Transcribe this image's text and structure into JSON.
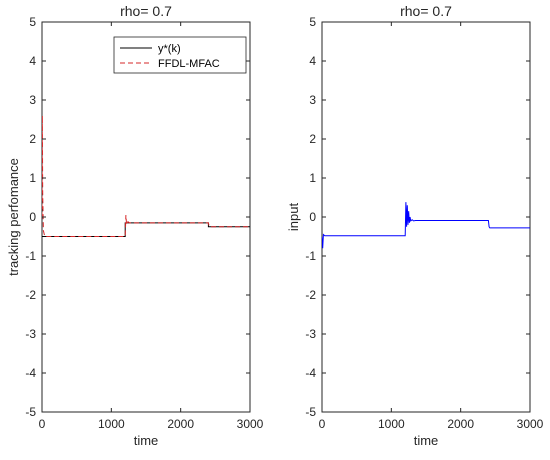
{
  "chart_data": [
    {
      "type": "line",
      "title": "rho= 0.7",
      "xlabel": "time",
      "ylabel": "tracking perfomance",
      "xlim": [
        0,
        3000
      ],
      "ylim": [
        -5,
        5
      ],
      "xticks": [
        0,
        1000,
        2000,
        3000
      ],
      "yticks": [
        5,
        4,
        3,
        2,
        1,
        0,
        -1,
        -2,
        -3,
        -4,
        -5
      ],
      "grid": false,
      "legend_position": "top-right",
      "series": [
        {
          "name": "y*(k)",
          "color": "#000000",
          "style": "solid",
          "x": [
            0,
            1200,
            1200,
            2400,
            2400,
            3000
          ],
          "y": [
            -0.5,
            -0.5,
            -0.15,
            -0.15,
            -0.25,
            -0.25
          ]
        },
        {
          "name": "FFDL-MFAC",
          "color": "#d62728",
          "style": "dashed",
          "x": [
            0,
            5,
            10,
            20,
            40,
            80,
            1200,
            1210,
            1220,
            1240,
            1260,
            2400,
            2410,
            2430,
            3000
          ],
          "y": [
            0,
            2.6,
            0.6,
            -0.35,
            -0.5,
            -0.5,
            -0.5,
            0.05,
            -0.2,
            -0.12,
            -0.15,
            -0.15,
            -0.24,
            -0.25,
            -0.25
          ]
        }
      ]
    },
    {
      "type": "line",
      "title": "rho= 0.7",
      "xlabel": "time",
      "ylabel": "input",
      "xlim": [
        0,
        3000
      ],
      "ylim": [
        -5,
        5
      ],
      "xticks": [
        0,
        1000,
        2000,
        3000
      ],
      "yticks": [
        5,
        4,
        3,
        2,
        1,
        0,
        -1,
        -2,
        -3,
        -4,
        -5
      ],
      "grid": false,
      "series": [
        {
          "color": "#0000ff",
          "style": "solid",
          "x": [
            0,
            10,
            20,
            40,
            1200,
            1210,
            1220,
            1230,
            1240,
            1250,
            1260,
            1270,
            1280,
            1300,
            1320,
            1350,
            2400,
            2410,
            2420,
            3000
          ],
          "y": [
            -0.5,
            -0.8,
            -0.45,
            -0.48,
            -0.48,
            0.38,
            -0.25,
            0.3,
            -0.2,
            0.15,
            -0.15,
            0.0,
            -0.1,
            -0.07,
            -0.1,
            -0.09,
            -0.09,
            -0.25,
            -0.28,
            -0.28
          ]
        }
      ]
    }
  ],
  "colors": {
    "axis": "#262626",
    "reference": "#000000",
    "mfac": "#d62728",
    "input": "#0000ff"
  }
}
